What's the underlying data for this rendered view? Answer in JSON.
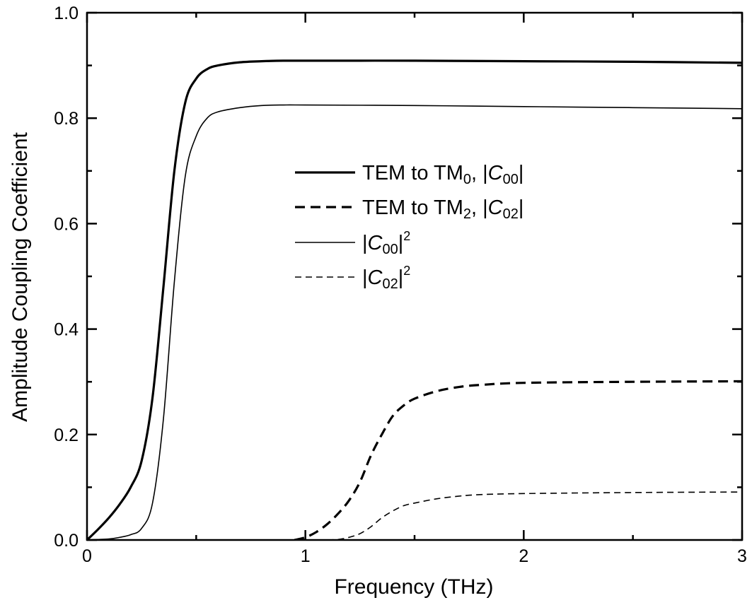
{
  "chart_data": {
    "type": "line",
    "xlabel": "Frequency (THz)",
    "ylabel": "Amplitude Coupling Coefficient",
    "xlim": [
      0,
      3
    ],
    "ylim": [
      0,
      1.0
    ],
    "x_ticks": [
      "0",
      "1",
      "2",
      "3"
    ],
    "y_ticks": [
      "0.0",
      "0.2",
      "0.4",
      "0.6",
      "0.8",
      "1.0"
    ],
    "grid": false,
    "legend_position": "center",
    "series": [
      {
        "name": "TEM to TM0, |C00|",
        "legend": {
          "prefix": "TEM to TM",
          "sub1": "0",
          "mid": ", |",
          "ital": "C",
          "sub2": "00",
          "suffix": "|",
          "sup": ""
        },
        "style": "solid-thick",
        "x": [
          0,
          0.05,
          0.1,
          0.15,
          0.2,
          0.25,
          0.3,
          0.35,
          0.4,
          0.45,
          0.5,
          0.55,
          0.6,
          0.7,
          0.8,
          0.9,
          1.0,
          1.5,
          2.0,
          2.5,
          3.0
        ],
        "y": [
          0,
          0.02,
          0.042,
          0.068,
          0.1,
          0.15,
          0.27,
          0.48,
          0.7,
          0.83,
          0.875,
          0.893,
          0.9,
          0.906,
          0.908,
          0.909,
          0.909,
          0.909,
          0.908,
          0.907,
          0.905
        ]
      },
      {
        "name": "TEM to TM2, |C02|",
        "legend": {
          "prefix": "TEM to TM",
          "sub1": "2",
          "mid": ", |",
          "ital": "C",
          "sub2": "02",
          "suffix": "|",
          "sup": ""
        },
        "style": "dashed-thick",
        "x": [
          0.95,
          1.0,
          1.05,
          1.1,
          1.15,
          1.2,
          1.25,
          1.3,
          1.35,
          1.4,
          1.45,
          1.5,
          1.6,
          1.7,
          1.8,
          2.0,
          2.5,
          3.0
        ],
        "y": [
          0,
          0.005,
          0.015,
          0.03,
          0.05,
          0.075,
          0.11,
          0.16,
          0.2,
          0.235,
          0.255,
          0.268,
          0.282,
          0.29,
          0.294,
          0.298,
          0.3,
          0.301
        ]
      },
      {
        "name": "|C00|^2",
        "legend": {
          "prefix": "",
          "sub1": "",
          "mid": "|",
          "ital": "C",
          "sub2": "00",
          "suffix": "|",
          "sup": "2"
        },
        "style": "solid-thin",
        "x": [
          0,
          0.1,
          0.15,
          0.2,
          0.25,
          0.3,
          0.35,
          0.4,
          0.45,
          0.5,
          0.55,
          0.6,
          0.7,
          0.8,
          0.9,
          1.0,
          1.5,
          2.0,
          2.5,
          3.0
        ],
        "y": [
          0,
          0.002,
          0.005,
          0.01,
          0.022,
          0.07,
          0.23,
          0.49,
          0.69,
          0.766,
          0.8,
          0.812,
          0.82,
          0.824,
          0.825,
          0.825,
          0.824,
          0.822,
          0.82,
          0.818
        ]
      },
      {
        "name": "|C02|^2",
        "legend": {
          "prefix": "",
          "sub1": "",
          "mid": "|",
          "ital": "C",
          "sub2": "02",
          "suffix": "|",
          "sup": "2"
        },
        "style": "dashed-thin",
        "x": [
          1.1,
          1.15,
          1.2,
          1.25,
          1.3,
          1.35,
          1.4,
          1.45,
          1.5,
          1.6,
          1.7,
          1.8,
          2.0,
          2.5,
          3.0
        ],
        "y": [
          0,
          0.001,
          0.005,
          0.012,
          0.025,
          0.042,
          0.055,
          0.065,
          0.07,
          0.078,
          0.083,
          0.086,
          0.088,
          0.09,
          0.091
        ]
      }
    ]
  }
}
